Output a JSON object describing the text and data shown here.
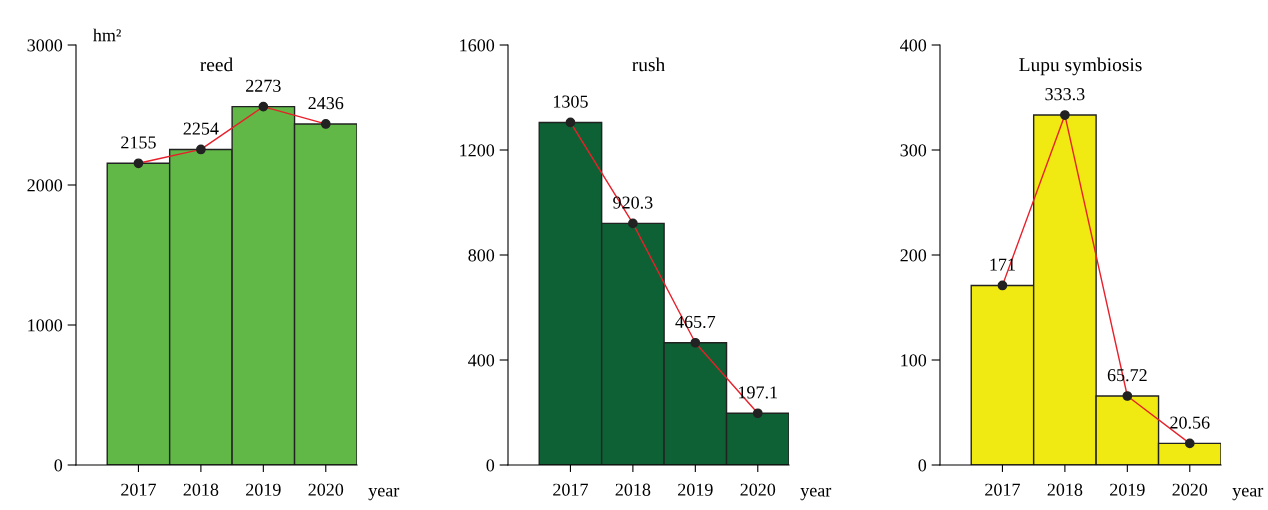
{
  "chart_data": [
    {
      "type": "bar",
      "title": "reed",
      "ylabel": "hm²",
      "xlabel": "year",
      "categories": [
        "2017",
        "2018",
        "2019",
        "2020"
      ],
      "ylim": [
        0,
        3000
      ],
      "yticks": [
        0,
        1000,
        2000,
        3000
      ],
      "grid": false,
      "marker": "circle",
      "annotations": [
        {
          "text": "2273",
          "x": "2019",
          "y": 2560
        }
      ],
      "series": [
        {
          "color": "#62b846",
          "values": [
            2155,
            2254,
            2560,
            2436
          ],
          "value_labels": [
            "2155",
            "2254",
            null,
            "2436"
          ]
        },
        {
          "type": "line",
          "color": "#e8202a",
          "values": [
            2155,
            2254,
            2560,
            2436
          ]
        }
      ]
    },
    {
      "type": "bar",
      "title": "rush",
      "xlabel": "year",
      "categories": [
        "2017",
        "2018",
        "2019",
        "2020"
      ],
      "ylim": [
        0,
        1600
      ],
      "yticks": [
        0,
        400,
        800,
        1200,
        1600
      ],
      "grid": false,
      "marker": "circle",
      "series": [
        {
          "color": "#0d6135",
          "values": [
            1305,
            920.3,
            465.7,
            197.1
          ],
          "value_labels": [
            "1305",
            "920.3",
            "465.7",
            "197.1"
          ]
        },
        {
          "type": "line",
          "color": "#e8202a",
          "values": [
            1305,
            920.3,
            465.7,
            197.1
          ]
        }
      ]
    },
    {
      "type": "bar",
      "title": "Lupu symbiosis",
      "xlabel": "year",
      "categories": [
        "2017",
        "2018",
        "2019",
        "2020"
      ],
      "ylim": [
        0,
        400
      ],
      "yticks": [
        0,
        100,
        200,
        300,
        400
      ],
      "grid": false,
      "marker": "circle",
      "series": [
        {
          "color": "#f0e912",
          "values": [
            171,
            333.3,
            65.72,
            20.56
          ],
          "value_labels": [
            "171",
            "333.3",
            "65.72",
            "20.56"
          ]
        },
        {
          "type": "line",
          "color": "#e8202a",
          "values": [
            171,
            333.3,
            65.72,
            20.56
          ]
        }
      ]
    }
  ]
}
